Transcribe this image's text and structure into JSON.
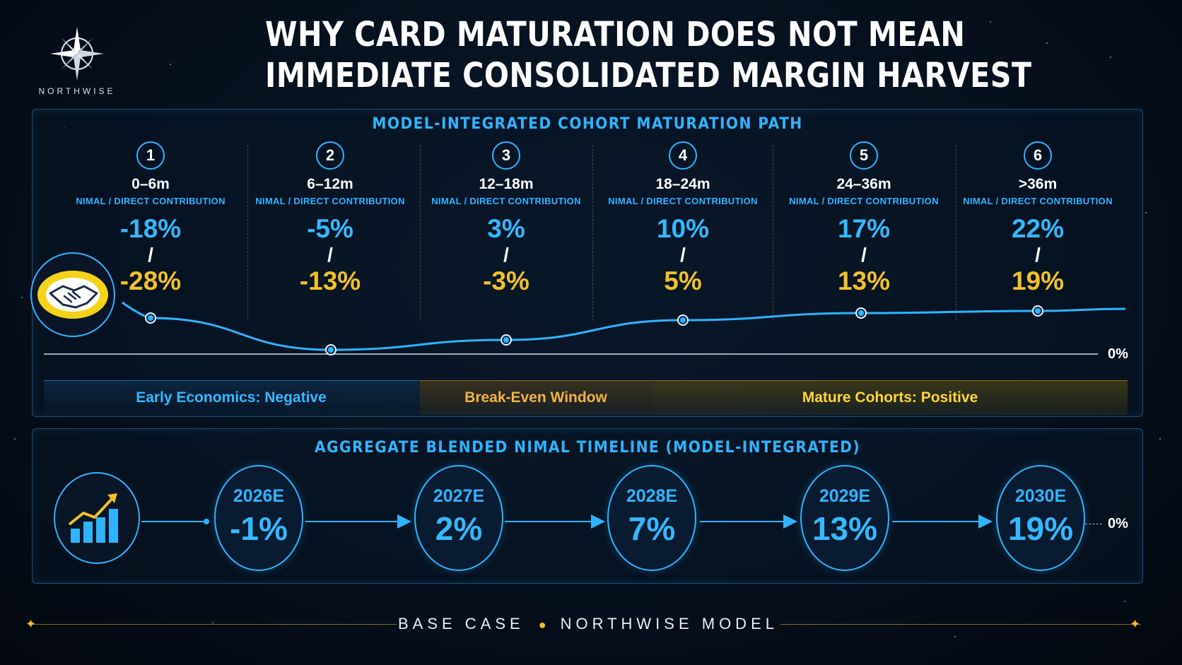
{
  "brand": {
    "name": "NORTHWISE"
  },
  "title": {
    "line1": "WHY CARD MATURATION DOES NOT MEAN",
    "line2": "IMMEDIATE CONSOLIDATED MARGIN HARVEST"
  },
  "cohort_panel": {
    "title": "MODEL-INTEGRATED COHORT MATURATION PATH",
    "zero_label": "0%",
    "bands": {
      "negative": "Early Economics: Negative",
      "break_even": "Break-Even Window",
      "positive": "Mature Cohorts: Positive"
    }
  },
  "timeline_panel": {
    "title": "AGGREGATE BLENDED NIMAL TIMELINE (MODEL-INTEGRATED)",
    "zero_label": "0%"
  },
  "footer": {
    "left": "BASE CASE",
    "right": "NORTHWISE MODEL"
  },
  "chart_data": [
    {
      "type": "line",
      "title": "MODEL-INTEGRATED COHORT MATURATION PATH",
      "categories": [
        "0–6m",
        "6–12m",
        "12–18m",
        "18–24m",
        "24–36m",
        ">36m"
      ],
      "steps": [
        "1",
        "2",
        "3",
        "4",
        "5",
        "6"
      ],
      "metric_label": "NIMAL / DIRECT CONTRIBUTION",
      "series": [
        {
          "name": "NIMAL",
          "values": [
            -18,
            -5,
            3,
            10,
            17,
            22
          ],
          "labels": [
            "-18%",
            "-5%",
            "3%",
            "10%",
            "17%",
            "22%"
          ],
          "color": "#36b8ff"
        },
        {
          "name": "DIRECT CONTRIBUTION",
          "values": [
            -28,
            -13,
            -3,
            5,
            13,
            19
          ],
          "labels": [
            "-28%",
            "-13%",
            "-3%",
            "5%",
            "13%",
            "19%"
          ],
          "color": "#f2c02c"
        }
      ],
      "curve_relative_levels": [
        -0.15,
        -0.96,
        -0.6,
        0.1,
        0.4,
        0.44,
        0.48
      ],
      "colors": {
        "line": "#2fb4ff",
        "negative": "#36b8ff",
        "break_even": "#f0b347",
        "positive": "#ffd53a"
      }
    },
    {
      "type": "line",
      "title": "AGGREGATE BLENDED NIMAL TIMELINE (MODEL-INTEGRATED)",
      "categories": [
        "2026E",
        "2027E",
        "2028E",
        "2029E",
        "2030E"
      ],
      "values": [
        -1,
        2,
        7,
        13,
        19
      ],
      "labels": [
        "-1%",
        "2%",
        "7%",
        "13%",
        "19%"
      ],
      "color": "#36b8ff"
    }
  ]
}
